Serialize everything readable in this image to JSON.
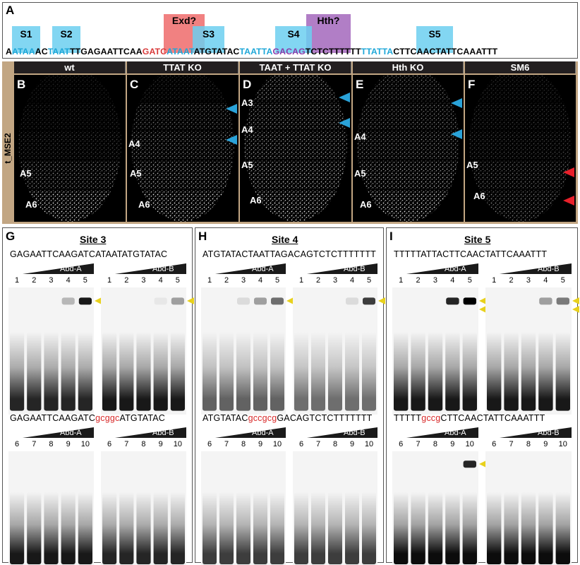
{
  "panel_a": {
    "letter": "A",
    "sites": [
      "S1",
      "S2",
      "S3",
      "S4",
      "S5"
    ],
    "exd_label": "Exd?",
    "hth_label": "Hth?",
    "sequence": [
      {
        "t": "A",
        "c": ""
      },
      {
        "t": "ATAA",
        "c": "blue"
      },
      {
        "t": "AC",
        "c": ""
      },
      {
        "t": "TAAT",
        "c": "blue"
      },
      {
        "t": "TTGAGAATTCAA",
        "c": ""
      },
      {
        "t": "GATC",
        "c": "red"
      },
      {
        "t": "ATAAT",
        "c": "blue"
      },
      {
        "t": "ATGTATAC",
        "c": ""
      },
      {
        "t": "TAATTA",
        "c": "blue"
      },
      {
        "t": "GACAG",
        "c": "purple"
      },
      {
        "t": "TCTCTTTTTT",
        "c": ""
      },
      {
        "t": "TTATTA",
        "c": "blue"
      },
      {
        "t": "CTTCAACTATTCAAATTT",
        "c": ""
      }
    ]
  },
  "embryo": {
    "side_label": "t_MSE2",
    "columns": [
      {
        "letter": "B",
        "header": "wt",
        "labels": [
          "A5",
          "A6"
        ]
      },
      {
        "letter": "C",
        "header": "TTAT KO",
        "labels": [
          "A4",
          "A5",
          "A6"
        ]
      },
      {
        "letter": "D",
        "header": "TAAT + TTAT KO",
        "labels": [
          "A3",
          "A4",
          "A5",
          "A6"
        ]
      },
      {
        "letter": "E",
        "header": "Hth KO",
        "labels": [
          "A4",
          "A5",
          "A6"
        ]
      },
      {
        "letter": "F",
        "header": "SM6",
        "labels": [
          "A5",
          "A6"
        ]
      }
    ]
  },
  "emsa": [
    {
      "letter": "G",
      "title": "Site 3",
      "wt_seq": {
        "pre": "GAGAATTCAAGATCATAATATGTATAC",
        "mut": "",
        "post": ""
      },
      "mut_seq": {
        "pre": "GAGAATTCAAGATC",
        "mut": "gcggc",
        "post": "ATGTATAC"
      },
      "proteins": [
        "Abd-A",
        "Abd-B"
      ],
      "lanes_top": [
        "1",
        "2",
        "3",
        "4",
        "5"
      ],
      "lanes_bottom": [
        "6",
        "7",
        "8",
        "9",
        "10"
      ]
    },
    {
      "letter": "H",
      "title": "Site 4",
      "wt_seq": {
        "pre": "ATGTATACTAATTAGACAGTCTCTTTTTTT",
        "mut": "",
        "post": ""
      },
      "mut_seq": {
        "pre": "ATGTATAC",
        "mut": "gccgcg",
        "post": "GACAGTCTCTTTTTTT"
      },
      "proteins": [
        "Abd-A",
        "Abd-B"
      ],
      "lanes_top": [
        "1",
        "2",
        "3",
        "4",
        "5"
      ],
      "lanes_bottom": [
        "6",
        "7",
        "8",
        "9",
        "10"
      ]
    },
    {
      "letter": "I",
      "title": "Site 5",
      "wt_seq": {
        "pre": "TTTTTATTACTTCAACTATTCAAATTT",
        "mut": "",
        "post": ""
      },
      "mut_seq": {
        "pre": "TTTTT",
        "mut": "gccg",
        "post": "CTTCAACTATTCAAATTT"
      },
      "proteins": [
        "Abd-A",
        "Abd-B"
      ],
      "lanes_top": [
        "1",
        "2",
        "3",
        "4",
        "5"
      ],
      "lanes_bottom": [
        "6",
        "7",
        "8",
        "9",
        "10"
      ]
    }
  ],
  "colors": {
    "site_blue": "#6ccff0",
    "exd_red": "#ee6b6b",
    "hth_purple": "#a870c0",
    "arrow_blue": "#2aa3d9",
    "arrow_red": "#e8202a",
    "arrow_yellow": "#e8d11c",
    "frame_tan": "#c2a683"
  }
}
